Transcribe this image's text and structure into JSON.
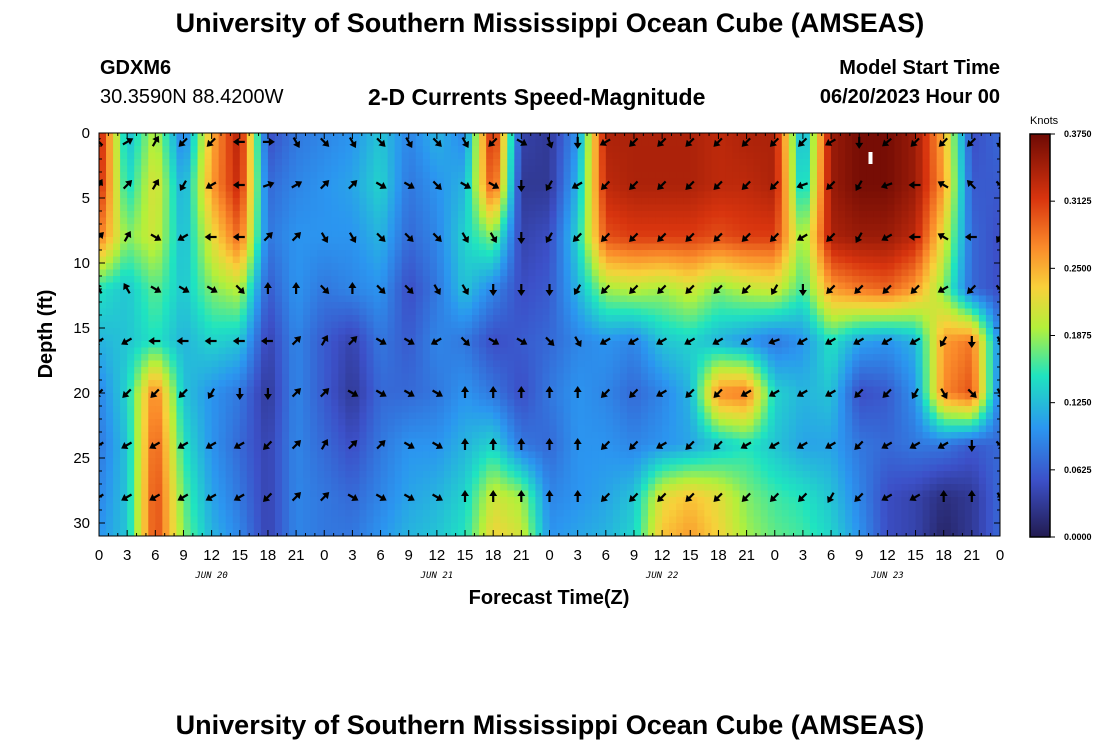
{
  "header": {
    "title_top": "University of Southern Mississippi Ocean Cube (AMSEAS)",
    "title_bottom": "University of Southern Mississippi Ocean Cube (AMSEAS)",
    "station_id": "GDXM6",
    "station_coords": "30.3590N  88.4200W",
    "plot_title": "2-D Currents Speed-Magnitude",
    "model_start_label": "Model Start Time",
    "model_start_value": "06/20/2023 Hour 00"
  },
  "chart_data": {
    "type": "heatmap",
    "title": "2-D Currents Speed-Magnitude",
    "xlabel": "Forecast Time(Z)",
    "ylabel": "Depth (ft)",
    "x_range_hours": [
      0,
      96
    ],
    "y_range_ft": [
      0,
      31
    ],
    "x_ticks": [
      "0",
      "3",
      "6",
      "9",
      "12",
      "15",
      "18",
      "21",
      "0",
      "3",
      "6",
      "9",
      "12",
      "15",
      "18",
      "21",
      "0",
      "3",
      "6",
      "9",
      "12",
      "15",
      "18",
      "21",
      "0",
      "3",
      "6",
      "9",
      "12",
      "15",
      "18",
      "21",
      "0"
    ],
    "day_labels": [
      {
        "label": "JUN 20",
        "hour": 12
      },
      {
        "label": "JUN 21",
        "hour": 36
      },
      {
        "label": "JUN 22",
        "hour": 60
      },
      {
        "label": "JUN 23",
        "hour": 84
      }
    ],
    "y_ticks": [
      "0",
      "5",
      "10",
      "15",
      "20",
      "25",
      "30"
    ],
    "y_tick_values": [
      0,
      5,
      10,
      15,
      20,
      25,
      30
    ],
    "colorbar": {
      "units": "Knots",
      "labels": [
        "0.3750",
        "0.3125",
        "0.2500",
        "0.1875",
        "0.1250",
        "0.0625",
        "0.0000"
      ],
      "min": 0.0,
      "max": 0.375
    },
    "speed_grid": {
      "hours": [
        0,
        3,
        6,
        9,
        12,
        15,
        18,
        21,
        24,
        27,
        30,
        33,
        36,
        39,
        42,
        45,
        48,
        51,
        54,
        57,
        60,
        63,
        66,
        69,
        72,
        75,
        78,
        81,
        84,
        87,
        90,
        93,
        96
      ],
      "depths_ft": [
        0,
        4,
        8,
        12,
        16,
        20,
        24,
        28,
        31
      ],
      "values": [
        [
          0.34,
          0.12,
          0.2,
          0.08,
          0.25,
          0.34,
          0.05,
          0.08,
          0.09,
          0.1,
          0.13,
          0.09,
          0.12,
          0.09,
          0.34,
          0.04,
          0.03,
          0.1,
          0.34,
          0.34,
          0.34,
          0.34,
          0.33,
          0.34,
          0.34,
          0.1,
          0.35,
          0.37,
          0.37,
          0.35,
          0.25,
          0.05,
          0.07
        ],
        [
          0.33,
          0.14,
          0.22,
          0.11,
          0.26,
          0.33,
          0.07,
          0.09,
          0.1,
          0.11,
          0.14,
          0.08,
          0.1,
          0.12,
          0.31,
          0.03,
          0.03,
          0.12,
          0.33,
          0.34,
          0.34,
          0.34,
          0.33,
          0.33,
          0.34,
          0.12,
          0.35,
          0.37,
          0.37,
          0.35,
          0.26,
          0.06,
          0.06
        ],
        [
          0.28,
          0.18,
          0.21,
          0.12,
          0.22,
          0.29,
          0.08,
          0.1,
          0.1,
          0.1,
          0.12,
          0.07,
          0.09,
          0.14,
          0.18,
          0.04,
          0.05,
          0.14,
          0.3,
          0.31,
          0.31,
          0.31,
          0.3,
          0.31,
          0.31,
          0.18,
          0.34,
          0.35,
          0.35,
          0.33,
          0.22,
          0.07,
          0.05
        ],
        [
          0.15,
          0.13,
          0.17,
          0.13,
          0.18,
          0.2,
          0.06,
          0.1,
          0.08,
          0.09,
          0.1,
          0.05,
          0.08,
          0.13,
          0.09,
          0.05,
          0.06,
          0.12,
          0.19,
          0.2,
          0.19,
          0.21,
          0.18,
          0.2,
          0.21,
          0.16,
          0.26,
          0.28,
          0.29,
          0.26,
          0.18,
          0.07,
          0.05
        ],
        [
          0.12,
          0.13,
          0.15,
          0.12,
          0.14,
          0.13,
          0.04,
          0.09,
          0.06,
          0.04,
          0.08,
          0.06,
          0.09,
          0.08,
          0.05,
          0.06,
          0.07,
          0.09,
          0.1,
          0.09,
          0.13,
          0.14,
          0.12,
          0.1,
          0.08,
          0.1,
          0.15,
          0.11,
          0.1,
          0.12,
          0.26,
          0.28,
          0.09
        ],
        [
          0.09,
          0.14,
          0.28,
          0.13,
          0.1,
          0.08,
          0.03,
          0.09,
          0.06,
          0.03,
          0.07,
          0.07,
          0.08,
          0.1,
          0.08,
          0.05,
          0.08,
          0.1,
          0.09,
          0.07,
          0.09,
          0.12,
          0.27,
          0.28,
          0.14,
          0.12,
          0.13,
          0.05,
          0.06,
          0.1,
          0.27,
          0.3,
          0.08
        ],
        [
          0.08,
          0.13,
          0.3,
          0.15,
          0.1,
          0.07,
          0.04,
          0.09,
          0.07,
          0.05,
          0.08,
          0.1,
          0.1,
          0.12,
          0.14,
          0.08,
          0.07,
          0.1,
          0.1,
          0.09,
          0.1,
          0.11,
          0.13,
          0.15,
          0.13,
          0.11,
          0.11,
          0.08,
          0.07,
          0.08,
          0.08,
          0.06,
          0.07
        ],
        [
          0.09,
          0.13,
          0.31,
          0.17,
          0.11,
          0.08,
          0.04,
          0.09,
          0.08,
          0.07,
          0.09,
          0.11,
          0.12,
          0.14,
          0.21,
          0.19,
          0.09,
          0.1,
          0.11,
          0.13,
          0.22,
          0.24,
          0.22,
          0.18,
          0.16,
          0.15,
          0.13,
          0.09,
          0.05,
          0.04,
          0.02,
          0.03,
          0.07
        ],
        [
          0.1,
          0.13,
          0.31,
          0.18,
          0.12,
          0.09,
          0.04,
          0.09,
          0.08,
          0.08,
          0.1,
          0.12,
          0.13,
          0.15,
          0.23,
          0.21,
          0.1,
          0.11,
          0.12,
          0.14,
          0.24,
          0.26,
          0.23,
          0.19,
          0.17,
          0.16,
          0.14,
          0.1,
          0.05,
          0.04,
          0.01,
          0.03,
          0.07
        ]
      ]
    },
    "vector_grid": {
      "hours": [
        0,
        3,
        6,
        9,
        12,
        15,
        18,
        21,
        24,
        27,
        30,
        33,
        36,
        39,
        42,
        45,
        48,
        51,
        54,
        57,
        60,
        63,
        66,
        69,
        72,
        75,
        78,
        81,
        84,
        87,
        90,
        93,
        96
      ],
      "depths_ft": [
        0.3,
        4,
        8,
        12,
        16,
        20,
        24,
        28
      ],
      "direction_deg_from_east_ccw": [
        [
          135,
          30,
          60,
          225,
          225,
          180,
          0,
          -60,
          -45,
          -60,
          -45,
          -60,
          -45,
          -60,
          -135,
          -30,
          -70,
          -90,
          -150,
          -135,
          -135,
          -135,
          -135,
          -135,
          -135,
          -135,
          -150,
          -90,
          -140,
          -135,
          -135,
          -135,
          -90
        ],
        [
          60,
          45,
          60,
          -120,
          -150,
          -180,
          20,
          30,
          45,
          45,
          -30,
          -30,
          -45,
          -30,
          -30,
          -90,
          -120,
          -150,
          -135,
          -135,
          -135,
          -135,
          -135,
          -135,
          -135,
          -160,
          -135,
          -120,
          -160,
          180,
          150,
          135,
          -45
        ],
        [
          45,
          60,
          -30,
          -150,
          -180,
          -180,
          45,
          45,
          -60,
          -60,
          -45,
          -45,
          -45,
          -60,
          -60,
          -90,
          -120,
          -135,
          -135,
          -135,
          -135,
          -135,
          -135,
          -135,
          -135,
          -150,
          -135,
          -120,
          -150,
          180,
          150,
          180,
          -120
        ],
        [
          120,
          120,
          -30,
          -30,
          -30,
          -45,
          90,
          90,
          -45,
          90,
          -45,
          -45,
          -60,
          -60,
          -90,
          -90,
          -90,
          -120,
          -135,
          -135,
          -135,
          -135,
          -135,
          -135,
          -120,
          -90,
          -135,
          -135,
          -135,
          -135,
          -150,
          -135,
          -45
        ],
        [
          -150,
          -150,
          -180,
          -180,
          -180,
          -180,
          -180,
          45,
          60,
          45,
          -30,
          -30,
          -150,
          -45,
          -30,
          -30,
          -45,
          -60,
          -150,
          -150,
          -150,
          -150,
          -150,
          -150,
          -160,
          -150,
          -150,
          -150,
          -150,
          -150,
          -120,
          -90,
          -60
        ],
        [
          -135,
          -135,
          -135,
          -135,
          -120,
          -90,
          -90,
          45,
          45,
          -30,
          -30,
          -30,
          -30,
          90,
          90,
          90,
          90,
          90,
          -135,
          -135,
          -150,
          -135,
          -135,
          -150,
          -150,
          -150,
          -150,
          -135,
          -135,
          -120,
          -60,
          -45,
          -60
        ],
        [
          -150,
          -150,
          -150,
          -150,
          -150,
          -150,
          -135,
          45,
          60,
          45,
          45,
          -30,
          -30,
          90,
          90,
          90,
          90,
          90,
          -135,
          -135,
          -150,
          -135,
          -135,
          -150,
          -150,
          -150,
          -150,
          -135,
          -150,
          -150,
          -150,
          -90,
          -45
        ],
        [
          -150,
          -150,
          -150,
          -150,
          -150,
          -150,
          -135,
          45,
          45,
          -30,
          -30,
          -30,
          -30,
          90,
          90,
          90,
          90,
          90,
          -135,
          -135,
          -135,
          -135,
          -135,
          -135,
          -135,
          -135,
          -120,
          -135,
          -150,
          -150,
          90,
          90,
          -60
        ]
      ]
    },
    "markers": [
      {
        "type": "white-bar",
        "hour": 82.2,
        "depth_ft": 2
      }
    ]
  }
}
